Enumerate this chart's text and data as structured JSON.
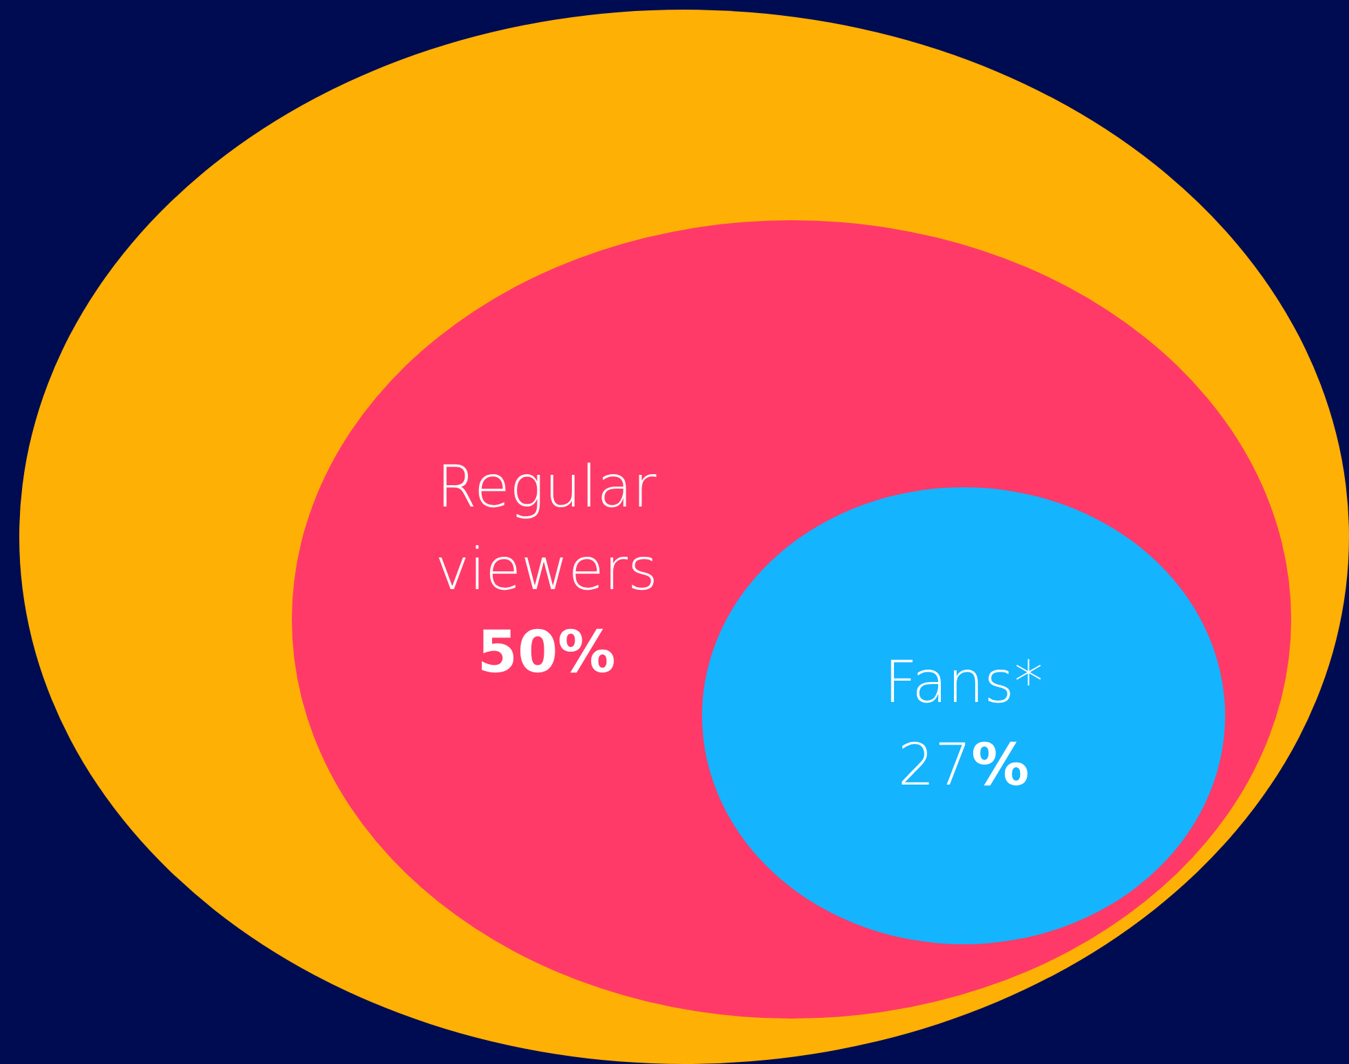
{
  "chart_data": {
    "type": "other",
    "categories": [
      null,
      "Regular viewers",
      "Fans*"
    ],
    "values": [
      null,
      50,
      27
    ],
    "value_labels": [
      null,
      "50%",
      "27%"
    ],
    "colors": [
      "#ffb005",
      "#ff3a68",
      "#14b4ff"
    ]
  }
}
